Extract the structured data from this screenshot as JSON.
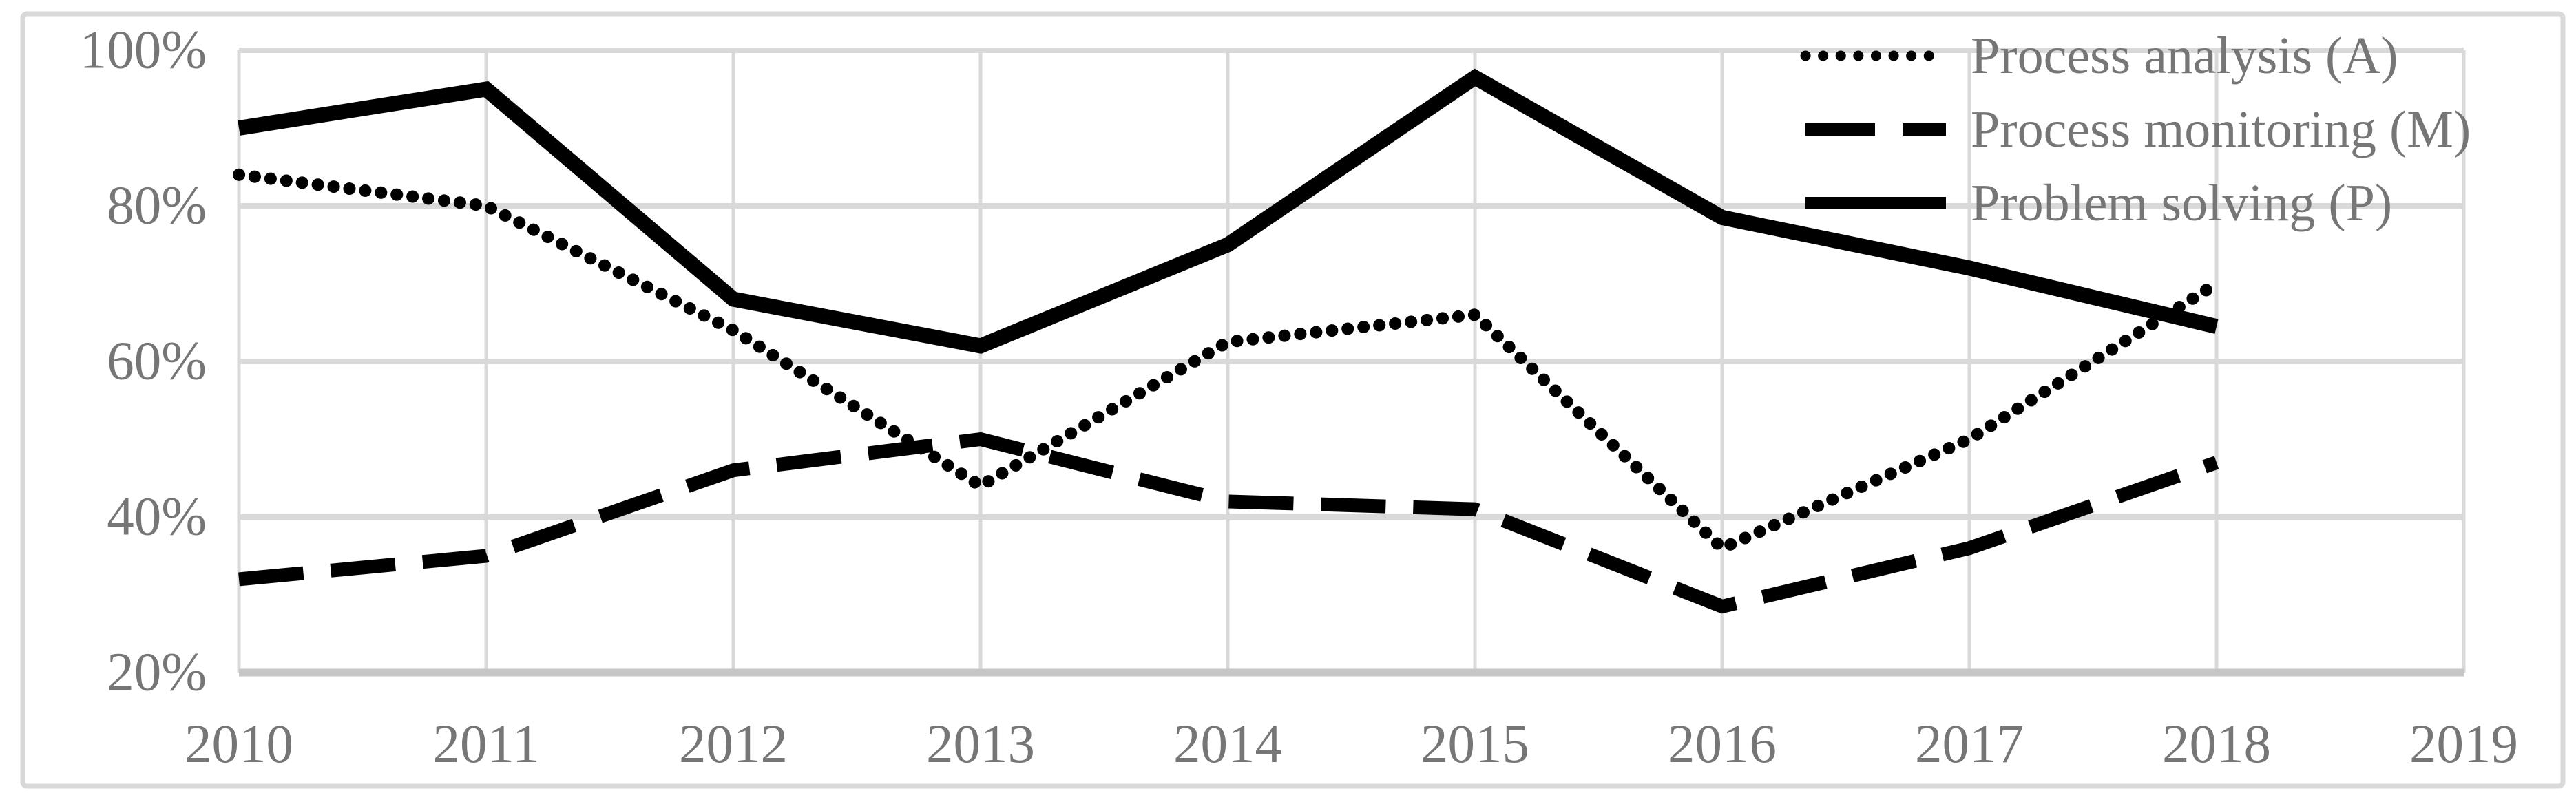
{
  "figure": {
    "background_color": "#ffffff",
    "border_color": "#d9d9d9",
    "gridline_color": "#d9d9d9",
    "axis_line_color": "#c6c6c6",
    "series_line_color": "#000000",
    "label_color": "#767676"
  },
  "chart_data": {
    "type": "line",
    "title": "",
    "xlabel": "",
    "ylabel": "",
    "x": [
      2010,
      2011,
      2012,
      2013,
      2014,
      2015,
      2016,
      2017,
      2018
    ],
    "x_tick_labels": [
      "2010",
      "2011",
      "2012",
      "2013",
      "2014",
      "2015",
      "2016",
      "2017",
      "2018",
      "2019"
    ],
    "y_tick_labels": [
      "100%",
      "80%",
      "60%",
      "40%",
      "20%"
    ],
    "y_tick_values": [
      100,
      80,
      60,
      40,
      20
    ],
    "ylim": [
      20,
      100
    ],
    "xlim": [
      2010,
      2019
    ],
    "grid": true,
    "legend_position": "top-right",
    "series": [
      {
        "name": "Process analysis (A)",
        "style": "dotted",
        "color": "#000000",
        "values": [
          84,
          80,
          64,
          44,
          62.5,
          66,
          36,
          50,
          70
        ]
      },
      {
        "name": "Process monitoring (M)",
        "style": "dashed",
        "color": "#000000",
        "values": [
          32,
          35,
          46,
          50,
          42,
          41,
          28.5,
          36,
          47
        ]
      },
      {
        "name": "Problem solving (P)",
        "style": "solid",
        "color": "#000000",
        "values": [
          90,
          95,
          68,
          62,
          75,
          96.5,
          78.5,
          72,
          64.5
        ]
      }
    ]
  }
}
